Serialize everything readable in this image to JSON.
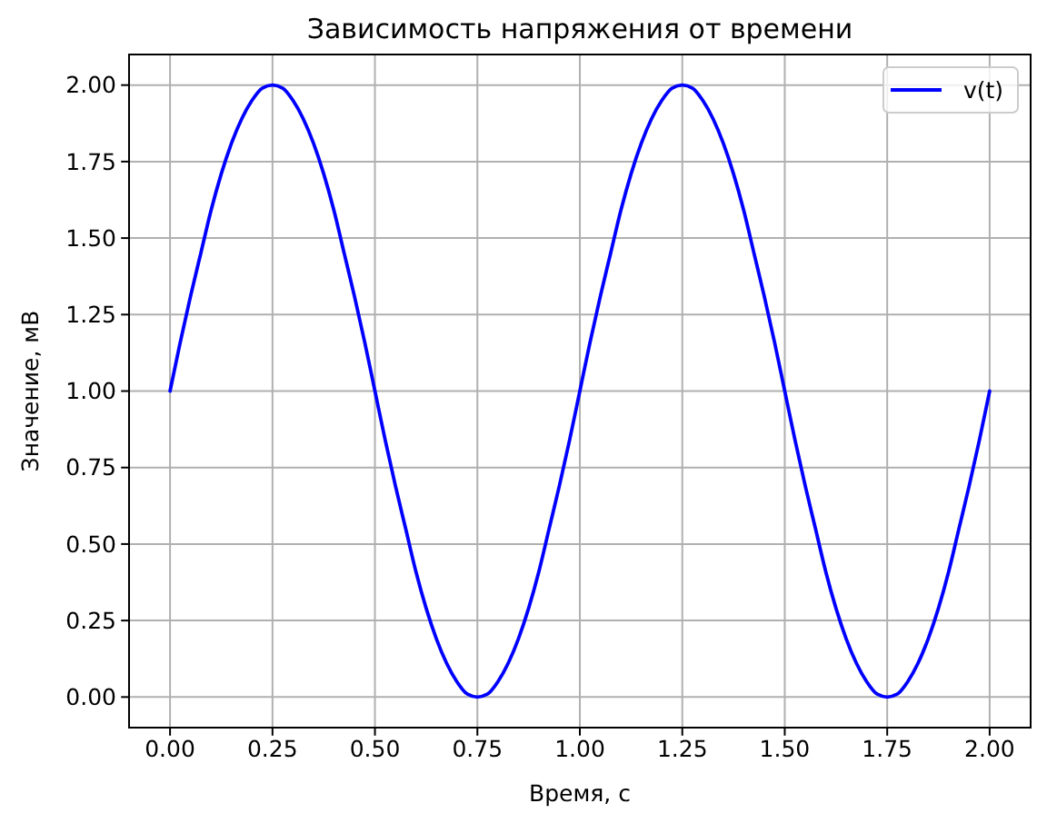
{
  "chart_data": {
    "type": "line",
    "title": "Зависимость напряжения от времени",
    "xlabel": "Время, с",
    "ylabel": "Значение, мВ",
    "x": [
      0,
      0.025,
      0.05,
      0.075,
      0.1,
      0.125,
      0.15,
      0.175,
      0.2,
      0.225,
      0.25,
      0.275,
      0.3,
      0.325,
      0.35,
      0.375,
      0.4,
      0.425,
      0.45,
      0.475,
      0.5,
      0.525,
      0.55,
      0.575,
      0.6,
      0.625,
      0.65,
      0.675,
      0.7,
      0.725,
      0.75,
      0.775,
      0.8,
      0.825,
      0.85,
      0.875,
      0.9,
      0.925,
      0.95,
      0.975,
      1,
      1.025,
      1.05,
      1.075,
      1.1,
      1.125,
      1.15,
      1.175,
      1.2,
      1.225,
      1.25,
      1.275,
      1.3,
      1.325,
      1.35,
      1.375,
      1.4,
      1.425,
      1.45,
      1.475,
      1.5,
      1.525,
      1.55,
      1.575,
      1.6,
      1.625,
      1.65,
      1.675,
      1.7,
      1.725,
      1.75,
      1.775,
      1.8,
      1.825,
      1.85,
      1.875,
      1.9,
      1.925,
      1.95,
      1.975,
      2
    ],
    "series": [
      {
        "name": "v(t)",
        "color": "#0000ff",
        "values": [
          1,
          1.16,
          1.31,
          1.45,
          1.59,
          1.71,
          1.81,
          1.89,
          1.95,
          1.99,
          2,
          1.99,
          1.95,
          1.89,
          1.81,
          1.71,
          1.59,
          1.45,
          1.31,
          1.16,
          1,
          0.84,
          0.69,
          0.55,
          0.41,
          0.29,
          0.19,
          0.11,
          0.05,
          0.01,
          0,
          0.01,
          0.05,
          0.11,
          0.19,
          0.29,
          0.41,
          0.55,
          0.69,
          0.84,
          1,
          1.16,
          1.31,
          1.45,
          1.59,
          1.71,
          1.81,
          1.89,
          1.95,
          1.99,
          2,
          1.99,
          1.95,
          1.89,
          1.81,
          1.71,
          1.59,
          1.45,
          1.31,
          1.16,
          1,
          0.84,
          0.69,
          0.55,
          0.41,
          0.29,
          0.19,
          0.11,
          0.05,
          0.01,
          0,
          0.01,
          0.05,
          0.11,
          0.19,
          0.29,
          0.41,
          0.55,
          0.69,
          0.84,
          1
        ]
      }
    ],
    "xlim": [
      -0.1,
      2.1
    ],
    "ylim": [
      -0.1,
      2.1
    ],
    "xticks": [
      {
        "value": 0,
        "label": "0.00"
      },
      0.25,
      {
        "value": 0.5,
        "label": "0.50"
      },
      0.75,
      {
        "value": 1,
        "label": "1.00"
      },
      1.25,
      {
        "value": 1.5,
        "label": "1.50"
      },
      1.75,
      {
        "value": 2,
        "label": "2.00"
      }
    ],
    "yticks": [
      {
        "value": 0,
        "label": "0.00"
      },
      0.25,
      {
        "value": 0.5,
        "label": "0.50"
      },
      0.75,
      {
        "value": 1,
        "label": "1.00"
      },
      1.25,
      {
        "value": 1.5,
        "label": "1.50"
      },
      1.75,
      {
        "value": 2,
        "label": "2.00"
      }
    ],
    "grid": true,
    "legend": "top right"
  }
}
